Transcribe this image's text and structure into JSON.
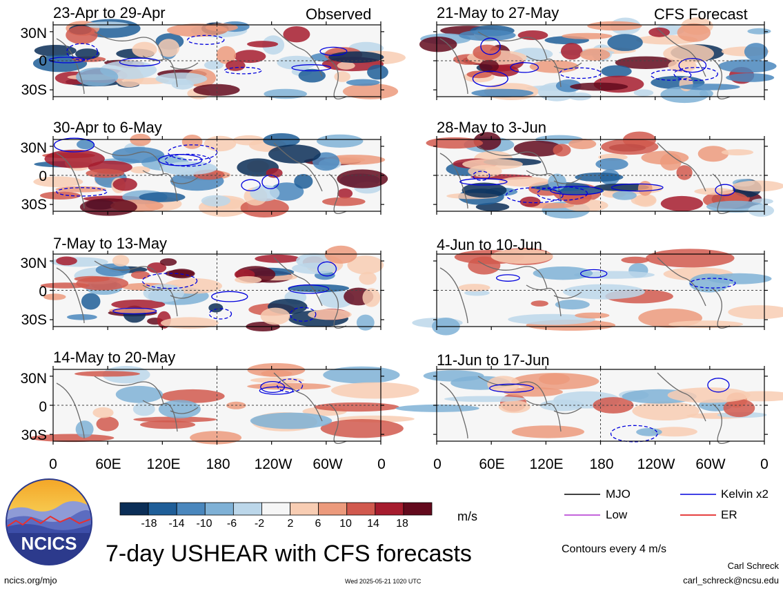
{
  "tags": {
    "observed": "Observed",
    "forecast": "CFS Forecast"
  },
  "panels": [
    {
      "title": "23-Apr to 29-Apr",
      "kind": "observed"
    },
    {
      "title": "21-May to 27-May",
      "kind": "forecast"
    },
    {
      "title": "30-Apr to 6-May",
      "kind": "observed"
    },
    {
      "title": "28-May to 3-Jun",
      "kind": "forecast"
    },
    {
      "title": "7-May to 13-May",
      "kind": "observed"
    },
    {
      "title": "4-Jun to 10-Jun",
      "kind": "forecast"
    },
    {
      "title": "14-May to 20-May",
      "kind": "observed"
    },
    {
      "title": "11-Jun to 17-Jun",
      "kind": "forecast"
    }
  ],
  "chart_data": {
    "type": "heatmap",
    "title": "7-day USHEAR with CFS forecasts",
    "x_ticks": [
      "0",
      "60E",
      "120E",
      "180",
      "120W",
      "60W",
      "0"
    ],
    "y_ticks": [
      "30N",
      "0",
      "30S"
    ],
    "x_range_deg_east": [
      0,
      360
    ],
    "y_range_deg_north": [
      -37,
      37
    ],
    "colorbar": {
      "units": "m/s",
      "labels": [
        "-18",
        "-14",
        "-10",
        "-6",
        "-2",
        "2",
        "6",
        "10",
        "14",
        "18"
      ],
      "colors": [
        "#0b2e57",
        "#1f5e98",
        "#4a87bd",
        "#7fb1d6",
        "#bcd7ea",
        "#f6f6f6",
        "#f8cdb3",
        "#ec9a7c",
        "#d1594e",
        "#a61c2e",
        "#630a1d"
      ]
    },
    "contour_note": "Contours every 4 m/s",
    "legend": [
      {
        "label": "MJO",
        "color": "#000000"
      },
      {
        "label": "Kelvin x2",
        "color": "#0000dd"
      },
      {
        "label": "Low",
        "color": "#b030d0"
      },
      {
        "label": "ER",
        "color": "#dd0000"
      }
    ],
    "grid": "dashed lines at 0 and 180"
  },
  "footer": {
    "site": "ncics.org/mjo",
    "timestamp": "Wed 2025-05-21 1020 UTC",
    "author": "Carl Schreck",
    "email": "carl_schreck@ncsu.edu",
    "logo_text": "NCICS"
  }
}
